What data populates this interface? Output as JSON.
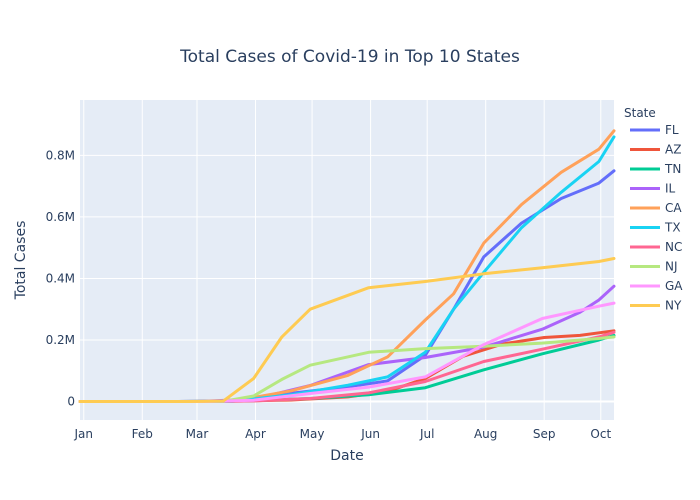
{
  "chart_data": {
    "type": "line",
    "title": "Total Cases of Covid-19 in Top 10 States",
    "xlabel": "Date",
    "ylabel": "Total Cases",
    "legend_title": "State",
    "legend_position": "right",
    "grid": true,
    "x_ticks": [
      "Jan",
      "Feb",
      "Mar",
      "Apr",
      "May",
      "Jun",
      "Jul",
      "Aug",
      "Sep",
      "Oct"
    ],
    "x_tick_dates": [
      "2020-01-01",
      "2020-02-01",
      "2020-03-01",
      "2020-04-01",
      "2020-05-01",
      "2020-06-01",
      "2020-07-01",
      "2020-08-01",
      "2020-09-01",
      "2020-10-01"
    ],
    "xlim": [
      "2019-12-30",
      "2020-10-08"
    ],
    "ylim": [
      -60000,
      980000
    ],
    "y_ticks": [
      0,
      200000,
      400000,
      600000,
      800000
    ],
    "y_tick_labels": [
      "0",
      "0.2M",
      "0.4M",
      "0.6M",
      "0.8M"
    ],
    "series": [
      {
        "name": "FL",
        "color": "#636efa",
        "x": [
          "2019-12-30",
          "2020-02-20",
          "2020-03-20",
          "2020-04-20",
          "2020-05-20",
          "2020-06-10",
          "2020-06-30",
          "2020-07-15",
          "2020-07-31",
          "2020-08-20",
          "2020-09-10",
          "2020-09-30",
          "2020-10-08"
        ],
        "y": [
          0,
          0,
          2300,
          27000,
          48000,
          67000,
          150000,
          300000,
          470000,
          580000,
          660000,
          710000,
          750000
        ]
      },
      {
        "name": "AZ",
        "color": "#ef553b",
        "x": [
          "2019-12-30",
          "2020-03-01",
          "2020-03-20",
          "2020-04-20",
          "2020-05-20",
          "2020-06-10",
          "2020-06-30",
          "2020-07-20",
          "2020-08-10",
          "2020-09-01",
          "2020-09-20",
          "2020-10-08"
        ],
        "y": [
          0,
          0,
          1000,
          5000,
          15000,
          33000,
          75000,
          147000,
          187000,
          208000,
          215000,
          230000
        ]
      },
      {
        "name": "TN",
        "color": "#00cc96",
        "x": [
          "2019-12-30",
          "2020-03-05",
          "2020-03-31",
          "2020-04-30",
          "2020-05-31",
          "2020-06-30",
          "2020-07-31",
          "2020-08-31",
          "2020-09-30",
          "2020-10-08"
        ],
        "y": [
          0,
          0,
          3000,
          10000,
          22000,
          45000,
          103000,
          155000,
          200000,
          215000
        ]
      },
      {
        "name": "IL",
        "color": "#ab63fa",
        "x": [
          "2019-12-30",
          "2020-03-01",
          "2020-03-31",
          "2020-04-30",
          "2020-05-31",
          "2020-06-30",
          "2020-07-31",
          "2020-08-31",
          "2020-09-20",
          "2020-09-30",
          "2020-10-08"
        ],
        "y": [
          0,
          0,
          8000,
          52000,
          120000,
          143000,
          177000,
          235000,
          290000,
          330000,
          375000
        ]
      },
      {
        "name": "CA",
        "color": "#ffa15a",
        "x": [
          "2019-12-30",
          "2020-02-20",
          "2020-03-20",
          "2020-04-20",
          "2020-05-20",
          "2020-06-10",
          "2020-06-30",
          "2020-07-15",
          "2020-07-31",
          "2020-08-20",
          "2020-09-10",
          "2020-09-30",
          "2020-10-08"
        ],
        "y": [
          0,
          0,
          1500,
          35000,
          85000,
          145000,
          265000,
          350000,
          515000,
          640000,
          745000,
          820000,
          880000
        ]
      },
      {
        "name": "TX",
        "color": "#19d3f3",
        "x": [
          "2019-12-30",
          "2020-02-20",
          "2020-03-20",
          "2020-04-20",
          "2020-05-20",
          "2020-06-10",
          "2020-06-30",
          "2020-07-15",
          "2020-07-31",
          "2020-08-20",
          "2020-09-10",
          "2020-09-30",
          "2020-10-08"
        ],
        "y": [
          0,
          0,
          700,
          22000,
          53000,
          80000,
          160000,
          300000,
          420000,
          565000,
          680000,
          780000,
          860000
        ]
      },
      {
        "name": "NC",
        "color": "#ff6692",
        "x": [
          "2019-12-30",
          "2020-03-05",
          "2020-03-31",
          "2020-04-30",
          "2020-05-31",
          "2020-06-30",
          "2020-07-31",
          "2020-08-31",
          "2020-09-30",
          "2020-10-08"
        ],
        "y": [
          0,
          0,
          2000,
          10000,
          28000,
          65000,
          130000,
          170000,
          210000,
          225000
        ]
      },
      {
        "name": "NJ",
        "color": "#b6e880",
        "x": [
          "2019-12-30",
          "2020-03-01",
          "2020-03-15",
          "2020-03-31",
          "2020-04-15",
          "2020-04-30",
          "2020-05-31",
          "2020-06-30",
          "2020-07-31",
          "2020-08-31",
          "2020-09-30",
          "2020-10-08"
        ],
        "y": [
          0,
          0,
          500,
          18000,
          72000,
          118000,
          160000,
          172000,
          180000,
          190000,
          205000,
          210000
        ]
      },
      {
        "name": "GA",
        "color": "#ff97ff",
        "x": [
          "2019-12-30",
          "2020-03-05",
          "2020-03-31",
          "2020-04-30",
          "2020-05-31",
          "2020-06-30",
          "2020-07-31",
          "2020-08-31",
          "2020-09-30",
          "2020-10-08"
        ],
        "y": [
          0,
          0,
          4500,
          26000,
          47000,
          80000,
          185000,
          270000,
          310000,
          320000
        ]
      },
      {
        "name": "NY",
        "color": "#fecb52",
        "x": [
          "2019-12-30",
          "2020-02-25",
          "2020-03-05",
          "2020-03-15",
          "2020-03-31",
          "2020-04-15",
          "2020-04-30",
          "2020-05-31",
          "2020-06-30",
          "2020-07-31",
          "2020-08-31",
          "2020-09-30",
          "2020-10-08"
        ],
        "y": [
          0,
          0,
          500,
          2000,
          75000,
          210000,
          300000,
          370000,
          390000,
          415000,
          435000,
          455000,
          465000
        ]
      }
    ]
  }
}
